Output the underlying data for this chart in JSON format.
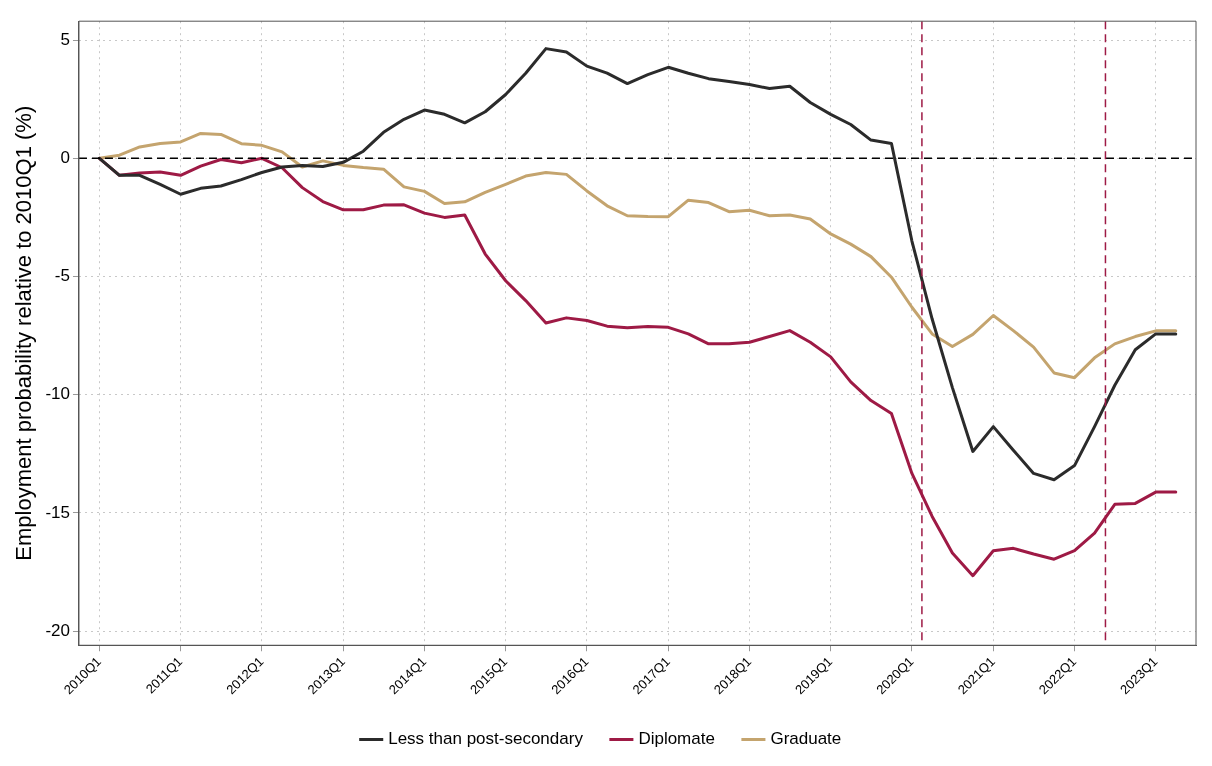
{
  "chart_data": {
    "type": "line",
    "ylabel": "Employment probability relative to 2010Q1 (%)",
    "x": [
      "2010-01",
      "2010-04",
      "2010-07",
      "2010-10",
      "2011-01",
      "2011-04",
      "2011-07",
      "2011-10",
      "2012-01",
      "2012-04",
      "2012-07",
      "2012-10",
      "2013-01",
      "2013-04",
      "2013-07",
      "2013-10",
      "2014-01",
      "2014-04",
      "2014-07",
      "2014-10",
      "2015-01",
      "2015-04",
      "2015-07",
      "2015-10",
      "2016-01",
      "2016-04",
      "2016-07",
      "2016-10",
      "2017-01",
      "2017-04",
      "2017-07",
      "2017-10",
      "2018-01",
      "2018-04",
      "2018-07",
      "2018-10",
      "2019-01",
      "2019-04",
      "2019-07",
      "2019-10",
      "2020-01",
      "2020-04",
      "2020-07",
      "2020-10",
      "2021-01",
      "2021-04",
      "2021-07",
      "2021-10",
      "2022-01",
      "2022-04",
      "2022-07",
      "2022-10",
      "2023-01",
      "2023-04"
    ],
    "series": [
      {
        "name": "Less than post-secondary",
        "color": "#2b2b2b",
        "values": [
          0,
          -0.72,
          -0.72,
          -1.1,
          -1.52,
          -1.27,
          -1.17,
          -0.9,
          -0.6,
          -0.37,
          -0.3,
          -0.35,
          -0.17,
          0.3,
          1.1,
          1.65,
          2.04,
          1.86,
          1.5,
          1.97,
          2.7,
          3.6,
          4.64,
          4.5,
          3.9,
          3.6,
          3.16,
          3.54,
          3.85,
          3.6,
          3.37,
          3.25,
          3.12,
          2.95,
          3.05,
          2.36,
          1.86,
          1.43,
          0.77,
          0.63,
          -3.5,
          -6.8,
          -9.7,
          -12.4,
          -11.35,
          -12.35,
          -13.33,
          -13.6,
          -13.0,
          -11.35,
          -9.6,
          -8.1,
          -7.43,
          -7.43
        ]
      },
      {
        "name": "Diplomate",
        "color": "#9e1a45",
        "values": [
          0,
          -0.72,
          -0.62,
          -0.58,
          -0.72,
          -0.33,
          -0.05,
          -0.19,
          0,
          -0.4,
          -1.24,
          -1.83,
          -2.18,
          -2.18,
          -1.98,
          -1.97,
          -2.32,
          -2.5,
          -2.4,
          -4.05,
          -5.18,
          -6.02,
          -6.97,
          -6.75,
          -6.86,
          -7.1,
          -7.17,
          -7.12,
          -7.15,
          -7.43,
          -7.85,
          -7.85,
          -7.78,
          -7.54,
          -7.29,
          -7.78,
          -8.4,
          -9.46,
          -10.25,
          -10.8,
          -13.33,
          -15.15,
          -16.7,
          -17.66,
          -16.6,
          -16.5,
          -16.74,
          -16.96,
          -16.6,
          -15.86,
          -14.64,
          -14.6,
          -14.12,
          -14.12
        ]
      },
      {
        "name": "Graduate",
        "color": "#c4a46e",
        "values": [
          0,
          0.13,
          0.48,
          0.63,
          0.69,
          1.05,
          1.01,
          0.62,
          0.55,
          0.27,
          -0.37,
          -0.11,
          -0.3,
          -0.39,
          -0.46,
          -1.21,
          -1.4,
          -1.91,
          -1.84,
          -1.44,
          -1.1,
          -0.75,
          -0.6,
          -0.68,
          -1.38,
          -2.01,
          -2.43,
          -2.46,
          -2.47,
          -1.77,
          -1.87,
          -2.26,
          -2.2,
          -2.43,
          -2.4,
          -2.57,
          -3.2,
          -3.63,
          -4.16,
          -5.03,
          -6.3,
          -7.43,
          -7.96,
          -7.45,
          -6.65,
          -7.29,
          -7.99,
          -9.08,
          -9.28,
          -8.44,
          -7.85,
          -7.54,
          -7.3,
          -7.3
        ]
      }
    ],
    "xlim": [
      "2009-10",
      "2023-07"
    ],
    "xticks": [
      {
        "value": "2010-01",
        "label": "2010Q1"
      },
      {
        "value": "2011-01",
        "label": "2011Q1"
      },
      {
        "value": "2012-01",
        "label": "2012Q1"
      },
      {
        "value": "2013-01",
        "label": "2013Q1"
      },
      {
        "value": "2014-01",
        "label": "2014Q1"
      },
      {
        "value": "2015-01",
        "label": "2015Q1"
      },
      {
        "value": "2016-01",
        "label": "2016Q1"
      },
      {
        "value": "2017-01",
        "label": "2017Q1"
      },
      {
        "value": "2018-01",
        "label": "2018Q1"
      },
      {
        "value": "2019-01",
        "label": "2019Q1"
      },
      {
        "value": "2020-01",
        "label": "2020Q1"
      },
      {
        "value": "2021-01",
        "label": "2021Q1"
      },
      {
        "value": "2022-01",
        "label": "2022Q1"
      },
      {
        "value": "2023-01",
        "label": "2023Q1"
      }
    ],
    "ylim": [
      -20.6,
      5.8
    ],
    "yticks": [
      -20,
      -15,
      -10,
      -5,
      0,
      5
    ],
    "ref_lines": [
      {
        "axis": "y",
        "value": 0,
        "color": "#000000",
        "line_style": "dashed"
      },
      {
        "axis": "x",
        "value": "2020-02-15",
        "color": "#9e1a45",
        "line_style": "dashed"
      },
      {
        "axis": "x",
        "value": "2022-05-20",
        "color": "#9e1a45",
        "line_style": "dashed"
      }
    ],
    "grid": true,
    "legend": "bottom",
    "marker": "none",
    "line_style": "solid"
  }
}
